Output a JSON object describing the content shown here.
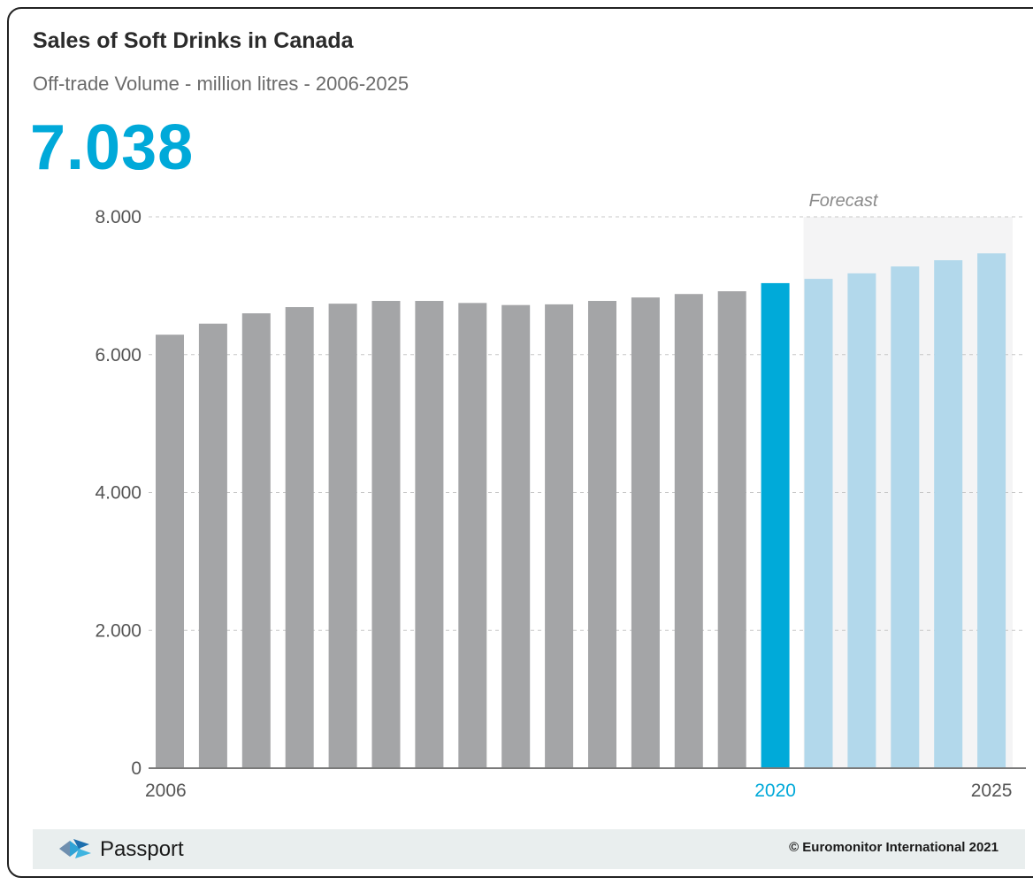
{
  "header": {
    "title": "Sales of Soft Drinks in Canada",
    "subtitle": "Off-trade Volume - million litres - 2006-2025",
    "headline_value": "7.038"
  },
  "chart_data": {
    "type": "bar",
    "categories": [
      "2006",
      "2007",
      "2008",
      "2009",
      "2010",
      "2011",
      "2012",
      "2013",
      "2014",
      "2015",
      "2016",
      "2017",
      "2018",
      "2019",
      "2020",
      "2021",
      "2022",
      "2023",
      "2024",
      "2025"
    ],
    "values": [
      6290,
      6450,
      6600,
      6690,
      6740,
      6780,
      6780,
      6750,
      6720,
      6730,
      6780,
      6830,
      6880,
      6920,
      7038,
      7100,
      7180,
      7280,
      7370,
      7470
    ],
    "ylim": [
      0,
      8000
    ],
    "y_ticks": [
      0,
      2000,
      4000,
      6000,
      8000
    ],
    "y_tick_labels": [
      "0",
      "2.000",
      "4.000",
      "6.000",
      "8.000"
    ],
    "x_tick_labels": [
      {
        "index": 0,
        "label": "2006"
      },
      {
        "index": 14,
        "label": "2020"
      },
      {
        "index": 19,
        "label": "2025"
      }
    ],
    "highlight_index": 14,
    "forecast_start_index": 15,
    "forecast_label": "Forecast",
    "grid": true,
    "colors": {
      "historic": "#a4a5a7",
      "highlight": "#00aad9",
      "forecast": "#b2d8eb",
      "forecast_bg": "#f4f4f5",
      "highlight_label": "#00a9d9",
      "axis_text": "#555555"
    }
  },
  "footer": {
    "brand": "Passport",
    "copyright": "© Euromonitor International 2021"
  }
}
